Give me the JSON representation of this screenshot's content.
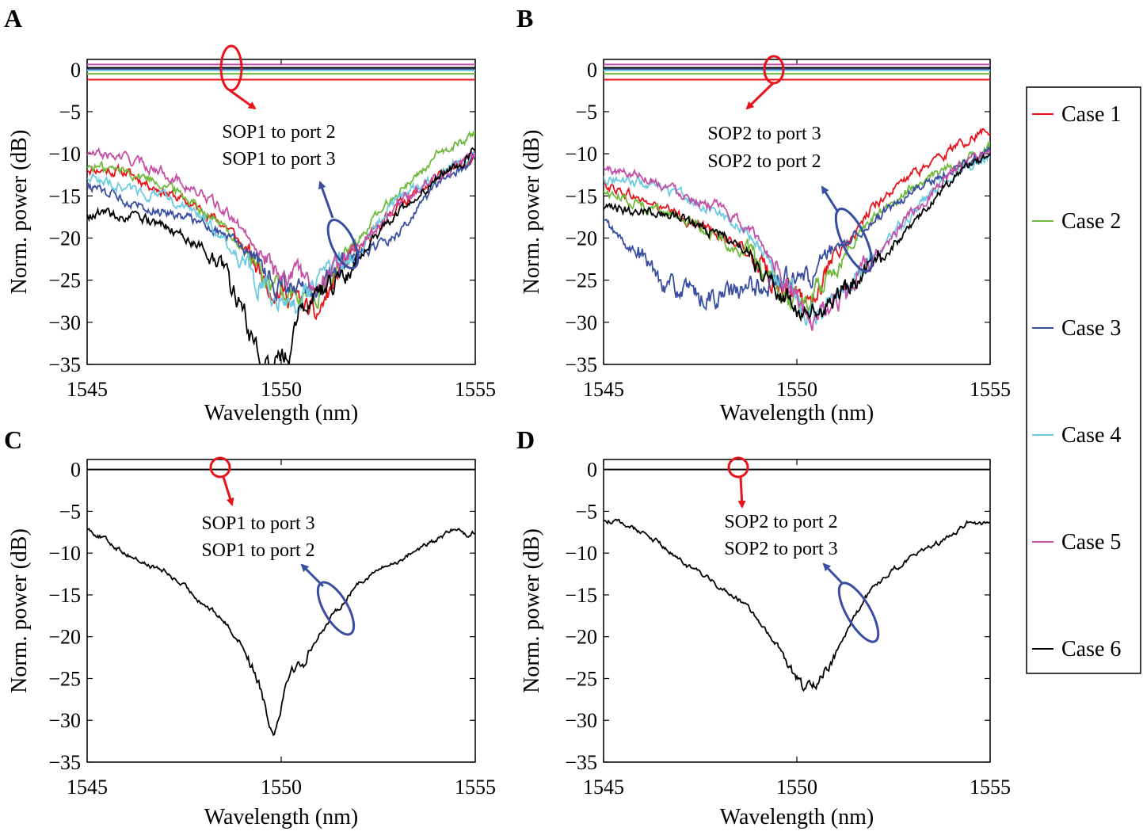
{
  "colors": {
    "case1": "#e8141b",
    "case2": "#6fba3d",
    "case3": "#3a4ea1",
    "case4": "#6ccbe0",
    "case5": "#c44fa6",
    "case6": "#000000",
    "ann_red": "#e8141b",
    "ann_blue": "#3a4ea1"
  },
  "legend": {
    "entries": [
      {
        "label": "Case 1",
        "color": "#e8141b"
      },
      {
        "label": "Case 2",
        "color": "#6fba3d"
      },
      {
        "label": "Case 3",
        "color": "#3a4ea1"
      },
      {
        "label": "Case 4",
        "color": "#6ccbe0"
      },
      {
        "label": "Case 5",
        "color": "#c44fa6"
      },
      {
        "label": "Case 6",
        "color": "#000000"
      }
    ]
  },
  "chart_data": [
    {
      "panel": "A",
      "type": "line",
      "xlabel": "Wavelength (nm)",
      "ylabel": "Norm. power (dB)",
      "xlim": [
        1545,
        1555
      ],
      "ylim": [
        -35,
        1.2
      ],
      "xticks": [
        1545,
        1550,
        1555
      ],
      "yticks": [
        0,
        -5,
        -10,
        -15,
        -20,
        -25,
        -30,
        -35
      ],
      "annotations": [
        "SOP1 to port 2",
        "SOP1 to port 3"
      ],
      "flat_series": [
        {
          "name": "Case 1",
          "y": -1.2
        },
        {
          "name": "Case 2",
          "y": -0.5
        },
        {
          "name": "Case 3",
          "y": 0
        },
        {
          "name": "Case 4",
          "y": -0.1
        },
        {
          "name": "Case 5",
          "y": 0.6
        },
        {
          "name": "Case 6",
          "y": 0.2
        }
      ],
      "series": [
        {
          "name": "Case 1",
          "x": [
            1545,
            1546,
            1547,
            1548,
            1548.7,
            1549.3,
            1549.8,
            1550.4,
            1550.9,
            1551.5,
            1552,
            1553,
            1554,
            1555
          ],
          "y": [
            -11.7,
            -12.2,
            -14.5,
            -16.8,
            -19,
            -23,
            -26,
            -27.2,
            -29.5,
            -24,
            -21.5,
            -16,
            -13,
            -10.5
          ]
        },
        {
          "name": "Case 2",
          "x": [
            1545,
            1546,
            1547,
            1548,
            1548.7,
            1549.3,
            1549.8,
            1550.4,
            1550.9,
            1551.5,
            1552,
            1553,
            1554,
            1555
          ],
          "y": [
            -11.5,
            -12,
            -13.5,
            -16.5,
            -19.5,
            -23,
            -25.5,
            -27.5,
            -27,
            -23,
            -20,
            -14.5,
            -10.5,
            -7.5
          ]
        },
        {
          "name": "Case 3",
          "x": [
            1545,
            1546,
            1547,
            1548,
            1548.7,
            1549.3,
            1549.8,
            1550.4,
            1550.9,
            1551.5,
            1552,
            1553,
            1554,
            1555
          ],
          "y": [
            -13.7,
            -15.5,
            -16.8,
            -18,
            -20,
            -22.5,
            -25,
            -26.5,
            -26.5,
            -23.5,
            -22,
            -19.5,
            -14,
            -10.5
          ]
        },
        {
          "name": "Case 4",
          "x": [
            1545,
            1546,
            1547,
            1548,
            1548.7,
            1549.3,
            1549.8,
            1550.4,
            1550.9,
            1551.5,
            1552,
            1553,
            1554,
            1555
          ],
          "y": [
            -12.7,
            -14,
            -15.2,
            -17.5,
            -21,
            -25,
            -26.5,
            -27.5,
            -26,
            -23,
            -21.5,
            -15,
            -12.5,
            -10
          ]
        },
        {
          "name": "Case 5",
          "x": [
            1545,
            1546,
            1547,
            1548,
            1548.7,
            1549.3,
            1549.8,
            1550.4,
            1550.9,
            1551.5,
            1552,
            1553,
            1554,
            1555
          ],
          "y": [
            -10,
            -10.5,
            -12.2,
            -15,
            -17.5,
            -20.5,
            -23.5,
            -24.5,
            -25.5,
            -22.5,
            -21,
            -16,
            -12.5,
            -10
          ]
        },
        {
          "name": "Case 6",
          "x": [
            1545,
            1546,
            1547,
            1548,
            1548.6,
            1549.0,
            1549.3,
            1549.6,
            1549.9,
            1550.2,
            1550.5,
            1550.9,
            1551.5,
            1552,
            1553,
            1554,
            1555
          ],
          "y": [
            -17,
            -17.5,
            -18.5,
            -21,
            -25,
            -28,
            -33,
            -35,
            -34,
            -33.5,
            -28,
            -27,
            -25,
            -22,
            -17,
            -13,
            -9.5
          ]
        }
      ]
    },
    {
      "panel": "B",
      "type": "line",
      "xlabel": "Wavelength (nm)",
      "ylabel": "Norm. power (dB)",
      "xlim": [
        1545,
        1555
      ],
      "ylim": [
        -35,
        1.2
      ],
      "xticks": [
        1545,
        1550,
        1555
      ],
      "yticks": [
        0,
        -5,
        -10,
        -15,
        -20,
        -25,
        -30,
        -35
      ],
      "annotations": [
        "SOP2 to port 3",
        "SOP2 to port 2"
      ],
      "flat_series": [
        {
          "name": "Case 1",
          "y": -1.2
        },
        {
          "name": "Case 2",
          "y": -0.5
        },
        {
          "name": "Case 3",
          "y": 0
        },
        {
          "name": "Case 4",
          "y": -0.1
        },
        {
          "name": "Case 5",
          "y": 0.6
        },
        {
          "name": "Case 6",
          "y": 0.2
        }
      ],
      "series": [
        {
          "name": "Case 1",
          "x": [
            1545,
            1546,
            1547,
            1548,
            1548.8,
            1549.3,
            1549.8,
            1550.3,
            1550.8,
            1551.5,
            1552,
            1553,
            1554,
            1555
          ],
          "y": [
            -13.5,
            -15.5,
            -17.5,
            -19.5,
            -22,
            -24.5,
            -26.5,
            -27.5,
            -24,
            -19.5,
            -16,
            -12.5,
            -9.5,
            -6.8
          ]
        },
        {
          "name": "Case 2",
          "x": [
            1545,
            1546,
            1547,
            1548,
            1548.8,
            1549.3,
            1549.8,
            1550.3,
            1550.8,
            1551.5,
            1552,
            1553,
            1554,
            1555
          ],
          "y": [
            -14.5,
            -16,
            -17.5,
            -20,
            -22.5,
            -25.5,
            -27.5,
            -27.5,
            -24.5,
            -20,
            -17.5,
            -14,
            -11.5,
            -9
          ]
        },
        {
          "name": "Case 3",
          "x": [
            1545,
            1545.5,
            1546,
            1546.7,
            1547.3,
            1548,
            1548.6,
            1549.2,
            1549.8,
            1550.3,
            1550.8,
            1551.5,
            1552,
            1553,
            1554,
            1555
          ],
          "y": [
            -18,
            -20.5,
            -22.5,
            -25.5,
            -27,
            -27,
            -26.5,
            -25.5,
            -25,
            -25,
            -22.5,
            -19.5,
            -18,
            -14.5,
            -12,
            -9.5
          ]
        },
        {
          "name": "Case 4",
          "x": [
            1545,
            1546,
            1547,
            1548,
            1548.8,
            1549.3,
            1549.8,
            1550.3,
            1550.8,
            1551.5,
            1552,
            1553,
            1554,
            1555
          ],
          "y": [
            -12.8,
            -13.5,
            -15,
            -17,
            -19.5,
            -22.5,
            -26,
            -29.5,
            -28,
            -25,
            -22,
            -17,
            -12.5,
            -10
          ]
        },
        {
          "name": "Case 5",
          "x": [
            1545,
            1546,
            1547,
            1548,
            1548.8,
            1549.3,
            1549.8,
            1550.4,
            1550.8,
            1551.5,
            1552,
            1553,
            1554,
            1555
          ],
          "y": [
            -11.8,
            -12.5,
            -14.5,
            -16.5,
            -19,
            -22,
            -25,
            -30.8,
            -28.5,
            -25.5,
            -22.5,
            -17,
            -12,
            -10
          ]
        },
        {
          "name": "Case 6",
          "x": [
            1545,
            1546,
            1547,
            1548,
            1548.8,
            1549.3,
            1549.8,
            1550.3,
            1550.7,
            1551.5,
            1552,
            1553,
            1554,
            1555
          ],
          "y": [
            -16.8,
            -16.5,
            -17.5,
            -19.5,
            -21.5,
            -25,
            -27.5,
            -29.5,
            -28.5,
            -25,
            -23,
            -18.5,
            -13,
            -10
          ]
        }
      ]
    },
    {
      "panel": "C",
      "type": "line",
      "xlabel": "Wavelength (nm)",
      "ylabel": "Norm. power (dB)",
      "xlim": [
        1545,
        1555
      ],
      "ylim": [
        -35,
        1.2
      ],
      "xticks": [
        1545,
        1550,
        1555
      ],
      "yticks": [
        0,
        -5,
        -10,
        -15,
        -20,
        -25,
        -30,
        -35
      ],
      "annotations": [
        "SOP1 to port 3",
        "SOP1 to port 2"
      ],
      "flat_series": [
        {
          "name": "Case 6",
          "y": 0
        }
      ],
      "series": [
        {
          "name": "Case 6",
          "x": [
            1545,
            1545.5,
            1546,
            1546.5,
            1547,
            1547.5,
            1548,
            1548.5,
            1549,
            1549.4,
            1549.8,
            1550.2,
            1550.6,
            1551,
            1551.5,
            1552,
            1552.5,
            1553,
            1553.5,
            1554,
            1554.5,
            1554.8,
            1555
          ],
          "y": [
            -7,
            -8.5,
            -10,
            -11.3,
            -12.2,
            -14,
            -16,
            -18,
            -21,
            -25,
            -31.8,
            -24,
            -23,
            -19.5,
            -16.5,
            -13.5,
            -12,
            -11,
            -9.5,
            -8.5,
            -7,
            -7.8,
            -7.5
          ]
        }
      ]
    },
    {
      "panel": "D",
      "type": "line",
      "xlabel": "Wavelength (nm)",
      "ylabel": "Norm. power (dB)",
      "xlim": [
        1545,
        1555
      ],
      "ylim": [
        -35,
        1.2
      ],
      "xticks": [
        1545,
        1550,
        1555
      ],
      "yticks": [
        0,
        -5,
        -10,
        -15,
        -20,
        -25,
        -30,
        -35
      ],
      "annotations": [
        "SOP2 to port 2",
        "SOP2 to port 3"
      ],
      "flat_series": [
        {
          "name": "Case 6",
          "y": 0
        }
      ],
      "series": [
        {
          "name": "Case 6",
          "x": [
            1545,
            1545.5,
            1546,
            1546.5,
            1547,
            1547.5,
            1548,
            1548.5,
            1549,
            1549.5,
            1550,
            1550.2,
            1550.5,
            1551,
            1551.5,
            1552,
            1552.5,
            1553,
            1553.5,
            1554,
            1554.5,
            1554.8,
            1555
          ],
          "y": [
            -6,
            -6.5,
            -7.5,
            -9,
            -11,
            -12.5,
            -14,
            -15.5,
            -18,
            -21,
            -25,
            -26.5,
            -25.5,
            -22,
            -17.5,
            -14,
            -12,
            -10.5,
            -9,
            -8,
            -6,
            -6.6,
            -6.2
          ]
        }
      ]
    }
  ]
}
